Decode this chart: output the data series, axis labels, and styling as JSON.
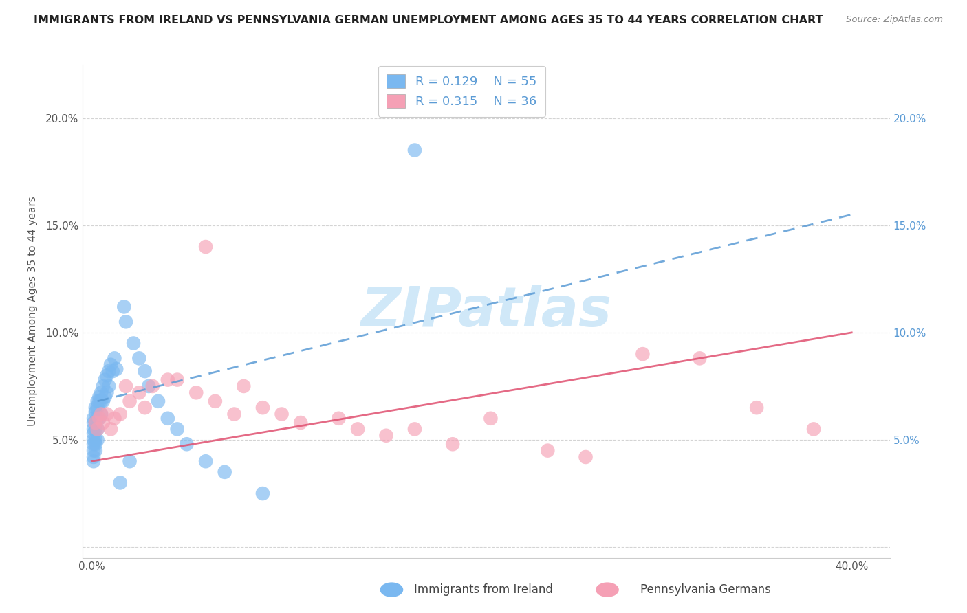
{
  "title": "IMMIGRANTS FROM IRELAND VS PENNSYLVANIA GERMAN UNEMPLOYMENT AMONG AGES 35 TO 44 YEARS CORRELATION CHART",
  "source": "Source: ZipAtlas.com",
  "ylabel": "Unemployment Among Ages 35 to 44 years",
  "series1_name": "Immigrants from Ireland",
  "series1_color": "#7ab8f0",
  "series1_edge": "none",
  "series1_R": 0.129,
  "series1_N": 55,
  "series1_x": [
    0.001,
    0.001,
    0.001,
    0.001,
    0.001,
    0.001,
    0.001,
    0.001,
    0.001,
    0.002,
    0.002,
    0.002,
    0.002,
    0.002,
    0.002,
    0.002,
    0.003,
    0.003,
    0.003,
    0.003,
    0.003,
    0.004,
    0.004,
    0.004,
    0.005,
    0.005,
    0.005,
    0.006,
    0.006,
    0.007,
    0.007,
    0.008,
    0.008,
    0.009,
    0.009,
    0.01,
    0.011,
    0.012,
    0.013,
    0.015,
    0.017,
    0.018,
    0.02,
    0.022,
    0.025,
    0.028,
    0.03,
    0.035,
    0.04,
    0.045,
    0.05,
    0.06,
    0.07,
    0.09,
    0.17
  ],
  "series1_y": [
    0.06,
    0.058,
    0.055,
    0.053,
    0.05,
    0.048,
    0.045,
    0.042,
    0.04,
    0.065,
    0.063,
    0.058,
    0.055,
    0.05,
    0.048,
    0.045,
    0.068,
    0.065,
    0.06,
    0.055,
    0.05,
    0.07,
    0.068,
    0.06,
    0.072,
    0.068,
    0.062,
    0.075,
    0.068,
    0.078,
    0.07,
    0.08,
    0.072,
    0.082,
    0.075,
    0.085,
    0.082,
    0.088,
    0.083,
    0.03,
    0.112,
    0.105,
    0.04,
    0.095,
    0.088,
    0.082,
    0.075,
    0.068,
    0.06,
    0.055,
    0.048,
    0.04,
    0.035,
    0.025,
    0.185
  ],
  "series2_name": "Pennsylvania Germans",
  "series2_color": "#f5a0b5",
  "series2_R": 0.315,
  "series2_N": 36,
  "series2_x": [
    0.002,
    0.003,
    0.004,
    0.005,
    0.006,
    0.008,
    0.01,
    0.012,
    0.015,
    0.018,
    0.02,
    0.025,
    0.028,
    0.032,
    0.04,
    0.045,
    0.055,
    0.06,
    0.065,
    0.075,
    0.08,
    0.09,
    0.1,
    0.11,
    0.13,
    0.14,
    0.155,
    0.17,
    0.19,
    0.21,
    0.24,
    0.26,
    0.29,
    0.32,
    0.35,
    0.38
  ],
  "series2_y": [
    0.058,
    0.055,
    0.06,
    0.062,
    0.058,
    0.062,
    0.055,
    0.06,
    0.062,
    0.075,
    0.068,
    0.072,
    0.065,
    0.075,
    0.078,
    0.078,
    0.072,
    0.14,
    0.068,
    0.062,
    0.075,
    0.065,
    0.062,
    0.058,
    0.06,
    0.055,
    0.052,
    0.055,
    0.048,
    0.06,
    0.045,
    0.042,
    0.09,
    0.088,
    0.065,
    0.055
  ],
  "line1_x0": 0.003,
  "line1_x1": 0.17,
  "line1_y0": 0.072,
  "line1_y1": 0.095,
  "line2_x0": 0.0,
  "line2_x1": 0.4,
  "line2_y0": 0.04,
  "line2_y1": 0.1,
  "xlim": [
    -0.005,
    0.42
  ],
  "ylim": [
    -0.005,
    0.225
  ],
  "xticks": [
    0.0,
    0.1,
    0.2,
    0.3,
    0.4
  ],
  "xtick_labels": [
    "0.0%",
    "",
    "",
    "",
    "40.0%"
  ],
  "yticks": [
    0.0,
    0.05,
    0.1,
    0.15,
    0.2
  ],
  "ytick_labels_left": [
    "",
    "5.0%",
    "10.0%",
    "15.0%",
    "20.0%"
  ],
  "ytick_labels_right": [
    "",
    "5.0%",
    "10.0%",
    "15.0%",
    "20.0%"
  ],
  "grid_color": "#d0d0d0",
  "watermark_text": "ZIPatlas",
  "watermark_color": "#d0e8f8",
  "background_color": "#ffffff",
  "title_color": "#222222",
  "source_color": "#888888",
  "axis_text_color": "#555555",
  "right_axis_color": "#5b9bd5",
  "legend_text_color": "#5b9bd5"
}
